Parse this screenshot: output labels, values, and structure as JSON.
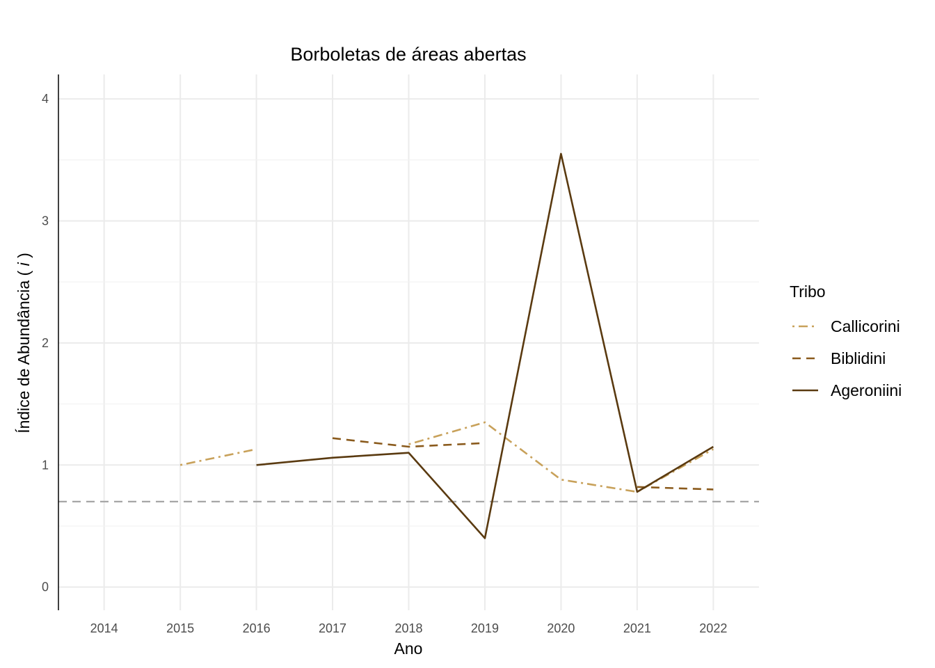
{
  "chart_data": {
    "type": "line",
    "title": "Borboletas de áreas abertas",
    "xlabel": "Ano",
    "ylabel_prefix": "Índice de Abundância ( ",
    "ylabel_italic": "i",
    "ylabel_suffix": " )",
    "x_ticks": [
      "2014",
      "2015",
      "2016",
      "2017",
      "2018",
      "2019",
      "2020",
      "2021",
      "2022"
    ],
    "y_ticks": [
      "0",
      "1",
      "2",
      "3",
      "4"
    ],
    "xlim": [
      2013.4,
      2022.6
    ],
    "ylim": [
      -0.19,
      4.2
    ],
    "grid": true,
    "reference_line": {
      "y": 0.7,
      "style": "dashed",
      "color": "#a6a6a6"
    },
    "legend": {
      "title": "Tribo",
      "position": "right",
      "entries": [
        "Callicorini",
        "Biblidini",
        "Ageroniini"
      ]
    },
    "series": [
      {
        "name": "Callicorini",
        "color": "#c8a15a",
        "dash": "dotdash",
        "segments": [
          [
            [
              2015,
              1.0
            ],
            [
              2016,
              1.13
            ]
          ],
          [
            [
              2018,
              1.17
            ],
            [
              2019,
              1.35
            ],
            [
              2020,
              0.88
            ],
            [
              2021,
              0.78
            ],
            [
              2022,
              1.13
            ]
          ]
        ]
      },
      {
        "name": "Biblidini",
        "color": "#8a5a1c",
        "dash": "dashed",
        "segments": [
          [
            [
              2017,
              1.22
            ],
            [
              2018,
              1.15
            ],
            [
              2019,
              1.18
            ]
          ],
          [
            [
              2021,
              0.82
            ],
            [
              2022,
              0.8
            ]
          ]
        ]
      },
      {
        "name": "Ageroniini",
        "color": "#5a3a10",
        "dash": "solid",
        "segments": [
          [
            [
              2016,
              1.0
            ],
            [
              2017,
              1.06
            ],
            [
              2018,
              1.1
            ],
            [
              2019,
              0.4
            ],
            [
              2020,
              3.55
            ],
            [
              2021,
              0.78
            ],
            [
              2022,
              1.15
            ]
          ]
        ]
      }
    ]
  }
}
